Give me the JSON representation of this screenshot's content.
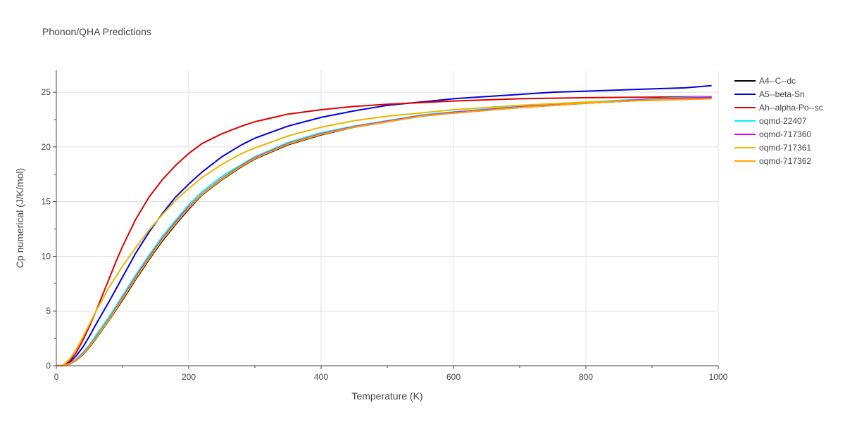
{
  "chart_data": {
    "type": "line",
    "title": "Phonon/QHA Predictions",
    "xlabel": "Temperature (K)",
    "ylabel": "Cp numerical (J/K/mol)",
    "xlim": [
      0,
      1000
    ],
    "ylim": [
      0,
      27
    ],
    "xticks": [
      0,
      200,
      400,
      600,
      800,
      1000
    ],
    "yticks": [
      0,
      5,
      10,
      15,
      20,
      25
    ],
    "grid": true,
    "legend_position": "top-right outside",
    "series": [
      {
        "name": "A4--C--dc",
        "color": "#000000",
        "x": [
          0,
          10,
          20,
          30,
          40,
          50,
          60,
          80,
          100,
          120,
          140,
          160,
          180,
          200,
          220,
          250,
          280,
          300,
          350,
          400,
          450,
          500,
          550,
          600,
          700,
          800,
          900,
          990
        ],
        "y": [
          0,
          0.01,
          0.15,
          0.5,
          1.0,
          1.7,
          2.5,
          4.2,
          6.0,
          7.9,
          9.7,
          11.4,
          12.9,
          14.3,
          15.6,
          17.0,
          18.2,
          18.9,
          20.2,
          21.1,
          21.8,
          22.3,
          22.8,
          23.1,
          23.6,
          24.0,
          24.3,
          24.5
        ]
      },
      {
        "name": "A5--beta-Sn",
        "color": "#0000dd",
        "x": [
          0,
          10,
          20,
          30,
          40,
          50,
          60,
          80,
          100,
          120,
          140,
          160,
          180,
          200,
          220,
          250,
          280,
          300,
          350,
          400,
          450,
          500,
          550,
          600,
          650,
          700,
          750,
          800,
          850,
          900,
          950,
          990
        ],
        "y": [
          0,
          0.02,
          0.3,
          0.9,
          1.7,
          2.7,
          3.8,
          5.9,
          8.1,
          10.3,
          12.2,
          13.9,
          15.4,
          16.6,
          17.7,
          19.1,
          20.2,
          20.8,
          21.9,
          22.7,
          23.3,
          23.8,
          24.1,
          24.4,
          24.6,
          24.8,
          25.0,
          25.1,
          25.2,
          25.3,
          25.4,
          25.6
        ]
      },
      {
        "name": "Ah--alpha-Po--sc",
        "color": "#dd0000",
        "x": [
          0,
          10,
          20,
          30,
          40,
          50,
          60,
          70,
          80,
          90,
          100,
          120,
          140,
          160,
          180,
          200,
          220,
          250,
          280,
          300,
          350,
          400,
          450,
          500,
          600,
          700,
          800,
          900,
          990
        ],
        "y": [
          0,
          0.03,
          0.4,
          1.2,
          2.3,
          3.6,
          5.0,
          6.5,
          8.0,
          9.5,
          10.9,
          13.4,
          15.4,
          17.0,
          18.3,
          19.4,
          20.3,
          21.2,
          21.9,
          22.3,
          23.0,
          23.4,
          23.7,
          23.9,
          24.2,
          24.4,
          24.5,
          24.55,
          24.6
        ]
      },
      {
        "name": "oqmd-22407",
        "color": "#00f2f2",
        "x": [
          0,
          10,
          20,
          30,
          40,
          50,
          60,
          80,
          100,
          120,
          140,
          160,
          180,
          200,
          220,
          250,
          280,
          300,
          350,
          400,
          450,
          500,
          550,
          600,
          700,
          800,
          900,
          990
        ],
        "y": [
          0,
          0.01,
          0.2,
          0.6,
          1.2,
          1.9,
          2.8,
          4.5,
          6.4,
          8.3,
          10.1,
          11.8,
          13.3,
          14.7,
          15.9,
          17.3,
          18.4,
          19.1,
          20.4,
          21.3,
          21.9,
          22.4,
          22.9,
          23.2,
          23.7,
          24.1,
          24.4,
          24.6
        ]
      },
      {
        "name": "oqmd-717360",
        "color": "#e600e6",
        "x": [
          0,
          10,
          20,
          30,
          40,
          50,
          60,
          80,
          100,
          120,
          140,
          160,
          180,
          200,
          220,
          250,
          280,
          300,
          350,
          400,
          450,
          500,
          550,
          600,
          700,
          800,
          900,
          990
        ],
        "y": [
          0,
          0.01,
          0.17,
          0.55,
          1.1,
          1.8,
          2.6,
          4.3,
          6.2,
          8.1,
          9.9,
          11.6,
          13.1,
          14.5,
          15.7,
          17.1,
          18.3,
          19.0,
          20.3,
          21.2,
          21.85,
          22.35,
          22.85,
          23.15,
          23.65,
          24.05,
          24.35,
          24.55
        ]
      },
      {
        "name": "oqmd-717361",
        "color": "#e6b800",
        "x": [
          0,
          10,
          20,
          30,
          40,
          50,
          60,
          70,
          80,
          100,
          120,
          140,
          160,
          180,
          200,
          220,
          250,
          280,
          300,
          350,
          400,
          450,
          500,
          550,
          600,
          700,
          800,
          900,
          990
        ],
        "y": [
          0,
          0.05,
          0.6,
          1.5,
          2.6,
          3.8,
          5.0,
          6.1,
          7.2,
          9.1,
          10.8,
          12.4,
          13.8,
          15.1,
          16.2,
          17.2,
          18.4,
          19.4,
          19.9,
          21.0,
          21.8,
          22.4,
          22.8,
          23.1,
          23.4,
          23.8,
          24.1,
          24.25,
          24.4
        ]
      },
      {
        "name": "oqmd-717362",
        "color": "#ffa500",
        "x": [
          0,
          10,
          20,
          30,
          40,
          50,
          60,
          80,
          100,
          120,
          140,
          160,
          180,
          200,
          220,
          250,
          280,
          300,
          350,
          400,
          450,
          500,
          550,
          600,
          700,
          800,
          900,
          990
        ],
        "y": [
          0,
          0.01,
          0.16,
          0.52,
          1.05,
          1.75,
          2.55,
          4.25,
          6.1,
          8.0,
          9.8,
          11.5,
          13.0,
          14.4,
          15.65,
          17.05,
          18.25,
          18.95,
          20.25,
          21.15,
          21.8,
          22.3,
          22.8,
          23.1,
          23.6,
          24.0,
          24.3,
          24.4
        ]
      }
    ]
  }
}
